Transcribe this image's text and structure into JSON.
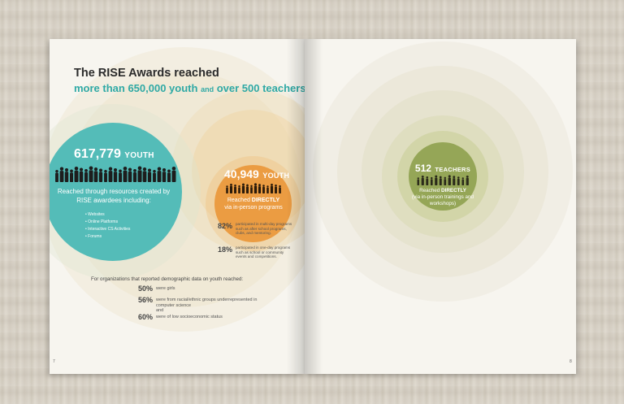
{
  "header": {
    "title_line1": "The RISE Awards reached",
    "title_line2_a": "more than 650,000 youth",
    "title_line2_and": "and",
    "title_line2_b": "over 500 teachers."
  },
  "youth_total": {
    "number": "617,779",
    "label": "YOUTH",
    "description": "Reached through resources created by RISE awardees including:",
    "resources": [
      "Websites",
      "Online Platforms",
      "Interactive CS Activities",
      "Forums"
    ]
  },
  "youth_direct": {
    "number": "40,949",
    "label": "YOUTH",
    "reached_prefix": "Reached ",
    "reached_emphasis": "DIRECTLY",
    "reached_suffix": "via in-person programs",
    "breakdown": [
      {
        "percent": "82%",
        "text": "participated in multi-day programs such as after school programs, clubs, and mentoring."
      },
      {
        "percent": "18%",
        "text": "participated in one-day programs such as school or community events and competitions."
      }
    ]
  },
  "demographics": {
    "intro": "For organizations that reported demographic data on youth reached:",
    "items": [
      {
        "percent": "50%",
        "text": "were girls"
      },
      {
        "percent": "56%",
        "text": "were from racial/ethnic groups underrepresented in computer science"
      },
      {
        "connector": "and"
      },
      {
        "percent": "60%",
        "text": "were of low socioeconomic status"
      }
    ]
  },
  "teachers": {
    "number": "512",
    "label": "TEACHERS",
    "reached_prefix": "Reached ",
    "reached_emphasis": "DIRECTLY",
    "reached_suffix": "(via in-person trainings and workshops)"
  },
  "page_numbers": {
    "left": "7",
    "right": "8"
  },
  "colors": {
    "teal": "#54bcb8",
    "orange": "#eb9c42",
    "olive": "#95a657",
    "title_teal": "#2fa9a5",
    "paper": "#f7f5ef"
  }
}
